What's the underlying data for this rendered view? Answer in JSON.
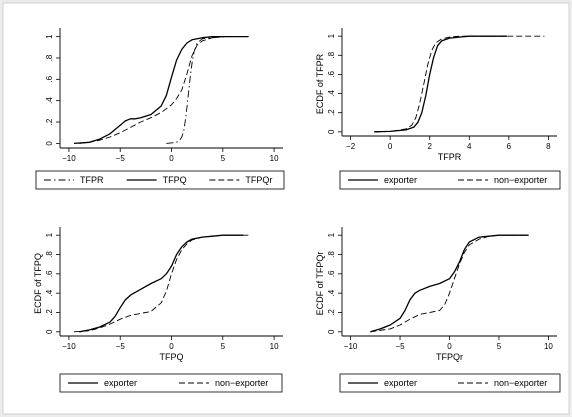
{
  "chart_data": [
    {
      "type": "line",
      "title": "",
      "xlabel": "",
      "ylabel": "",
      "xlim": [
        -10,
        10
      ],
      "ylim": [
        0,
        1
      ],
      "xticks": [
        "-10",
        "-5",
        "0",
        "5",
        "10"
      ],
      "yticks": [
        "0",
        ".2",
        ".4",
        ".6",
        ".8",
        "1"
      ],
      "legend_position": "bottom",
      "series": [
        {
          "name": "TFPR",
          "dash": "dashdot",
          "x": [
            -0.5,
            0.5,
            0.8,
            1.0,
            1.2,
            1.4,
            1.6,
            1.8,
            2.0,
            2.2,
            2.5,
            3.0,
            4.0,
            5.5,
            7.8
          ],
          "y": [
            0,
            0.01,
            0.03,
            0.06,
            0.12,
            0.25,
            0.42,
            0.6,
            0.75,
            0.86,
            0.94,
            0.98,
            0.99,
            1.0,
            1.0
          ]
        },
        {
          "name": "TFPQ",
          "dash": "solid",
          "x": [
            -9.5,
            -8,
            -7,
            -6,
            -5,
            -4.5,
            -4,
            -3.5,
            -3,
            -2,
            -1,
            -0.5,
            0,
            0.5,
            1,
            1.5,
            2,
            3,
            4,
            5,
            6,
            7.5
          ],
          "y": [
            0,
            0.01,
            0.04,
            0.09,
            0.17,
            0.21,
            0.23,
            0.23,
            0.24,
            0.27,
            0.35,
            0.45,
            0.62,
            0.78,
            0.88,
            0.94,
            0.97,
            0.99,
            1.0,
            1.0,
            1.0,
            1.0
          ]
        },
        {
          "name": "TFPQr",
          "dash": "dashed",
          "x": [
            -9,
            -8,
            -7,
            -6,
            -5,
            -4,
            -3,
            -2,
            -1,
            0,
            0.5,
            1,
            1.5,
            2,
            2.5,
            3,
            4,
            5,
            6,
            7.5
          ],
          "y": [
            0,
            0.01,
            0.03,
            0.06,
            0.1,
            0.15,
            0.2,
            0.24,
            0.29,
            0.36,
            0.42,
            0.5,
            0.65,
            0.82,
            0.92,
            0.96,
            0.99,
            1.0,
            1.0,
            1.0
          ]
        }
      ]
    },
    {
      "type": "line",
      "title": "",
      "xlabel": "TFPR",
      "ylabel": "ECDF of TFPR",
      "xlim": [
        -2,
        8
      ],
      "ylim": [
        0,
        1
      ],
      "xticks": [
        "-2",
        "0",
        "2",
        "4",
        "6",
        "8"
      ],
      "yticks": [
        "0",
        ".2",
        ".4",
        ".6",
        ".8",
        "1"
      ],
      "legend_position": "bottom",
      "series": [
        {
          "name": "exporter",
          "dash": "solid",
          "x": [
            -0.8,
            0,
            0.8,
            1.2,
            1.4,
            1.6,
            1.8,
            2.0,
            2.2,
            2.4,
            2.6,
            3.0,
            3.5,
            4.0,
            5.9
          ],
          "y": [
            0,
            0.005,
            0.02,
            0.05,
            0.1,
            0.2,
            0.38,
            0.6,
            0.78,
            0.9,
            0.95,
            0.98,
            0.99,
            1.0,
            1.0
          ]
        },
        {
          "name": "non-exporter",
          "dash": "dashed",
          "x": [
            -0.8,
            0,
            0.8,
            1.1,
            1.3,
            1.5,
            1.7,
            1.9,
            2.1,
            2.3,
            2.6,
            3.0,
            3.5,
            4.0,
            6,
            7.8
          ],
          "y": [
            0,
            0.005,
            0.03,
            0.07,
            0.15,
            0.3,
            0.5,
            0.7,
            0.85,
            0.93,
            0.97,
            0.99,
            1.0,
            1.0,
            1.0,
            1.0
          ]
        }
      ]
    },
    {
      "type": "line",
      "title": "",
      "xlabel": "TFPQ",
      "ylabel": "ECDF of TFPQ",
      "xlim": [
        -10,
        10
      ],
      "ylim": [
        0,
        1
      ],
      "xticks": [
        "-10",
        "-5",
        "0",
        "5",
        "10"
      ],
      "yticks": [
        "0",
        ".2",
        ".4",
        ".6",
        ".8",
        "1"
      ],
      "legend_position": "bottom",
      "series": [
        {
          "name": "exporter",
          "dash": "solid",
          "x": [
            -9,
            -8,
            -7,
            -6,
            -5.5,
            -5,
            -4.5,
            -4,
            -3,
            -2,
            -1,
            -0.5,
            0,
            0.5,
            1,
            1.5,
            2,
            3,
            4,
            5,
            7
          ],
          "y": [
            0,
            0.02,
            0.05,
            0.1,
            0.16,
            0.25,
            0.33,
            0.38,
            0.44,
            0.5,
            0.55,
            0.6,
            0.68,
            0.8,
            0.88,
            0.93,
            0.96,
            0.98,
            0.99,
            1.0,
            1.0
          ]
        },
        {
          "name": "non-exporter",
          "dash": "dashed",
          "x": [
            -9.5,
            -8,
            -7,
            -6,
            -5,
            -4,
            -3,
            -2,
            -1,
            -0.5,
            0,
            0.5,
            1,
            1.5,
            2,
            3,
            4,
            5,
            7.5
          ],
          "y": [
            0,
            0.01,
            0.04,
            0.08,
            0.13,
            0.17,
            0.19,
            0.21,
            0.3,
            0.42,
            0.6,
            0.75,
            0.85,
            0.91,
            0.95,
            0.98,
            0.99,
            1.0,
            1.0
          ]
        }
      ]
    },
    {
      "type": "line",
      "title": "",
      "xlabel": "TFPQr",
      "ylabel": "ECDF of TFPQr",
      "xlim": [
        -10,
        10
      ],
      "ylim": [
        0,
        1
      ],
      "xticks": [
        "-10",
        "-5",
        "0",
        "5",
        "10"
      ],
      "yticks": [
        "0",
        ".2",
        ".4",
        ".6",
        ".8",
        "1"
      ],
      "legend_position": "bottom",
      "series": [
        {
          "name": "exporter",
          "dash": "solid",
          "x": [
            -8,
            -7,
            -6,
            -5,
            -4.5,
            -4,
            -3.5,
            -3,
            -2,
            -1,
            0,
            0.5,
            1,
            1.5,
            2,
            3,
            4,
            5,
            8
          ],
          "y": [
            0,
            0.03,
            0.07,
            0.14,
            0.22,
            0.33,
            0.4,
            0.43,
            0.47,
            0.5,
            0.55,
            0.62,
            0.72,
            0.85,
            0.93,
            0.98,
            0.99,
            1.0,
            1.0
          ]
        },
        {
          "name": "non-exporter",
          "dash": "dashed",
          "x": [
            -8,
            -6,
            -5,
            -4,
            -3,
            -2,
            -1,
            -0.5,
            0,
            0.5,
            1,
            1.5,
            2,
            3,
            4,
            5,
            8
          ],
          "y": [
            0,
            0.03,
            0.07,
            0.13,
            0.18,
            0.2,
            0.22,
            0.28,
            0.4,
            0.55,
            0.7,
            0.82,
            0.9,
            0.96,
            0.99,
            1.0,
            1.0
          ]
        }
      ]
    }
  ]
}
